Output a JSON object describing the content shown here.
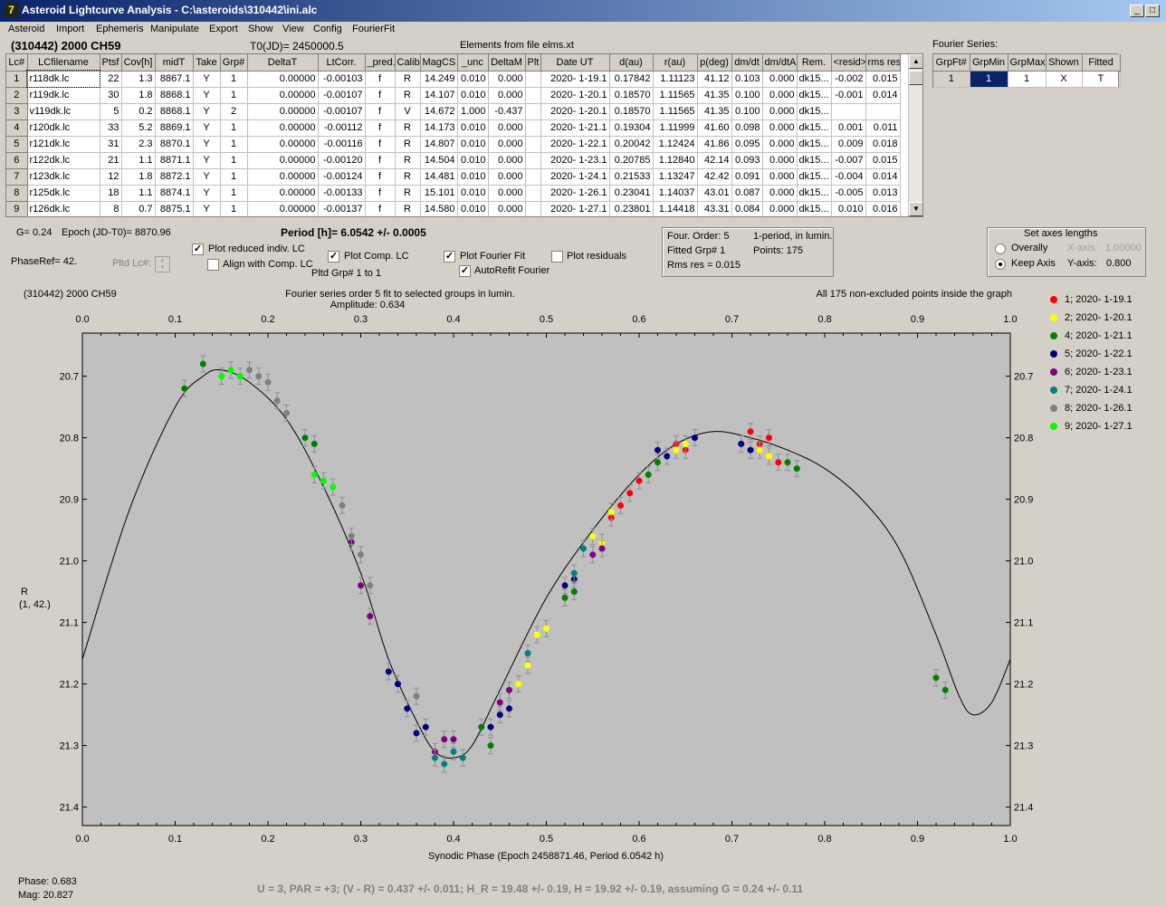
{
  "window": {
    "title": "Asteroid Lightcurve Analysis - C:\\asteroids\\310442\\ini.alc",
    "icon": "app-logo-icon"
  },
  "menu": [
    "Asteroid",
    "Import",
    "Ephemeris",
    "Manipulate",
    "Export",
    "Show",
    "View",
    "Config",
    "FourierFit"
  ],
  "header": {
    "asteroid": "(310442) 2000 CH59",
    "t0": "T0(JD)= 2450000.5",
    "elements": "Elements from file elms.xt",
    "fourier_label": "Fourier Series:"
  },
  "lc_columns": [
    "Lc#",
    "LCfilename",
    "Ptsf",
    "Cov[h]",
    "midT",
    "Take",
    "Grp#",
    "DeltaT",
    "LtCorr.",
    "_pred.",
    "Calib.",
    "MagCS",
    "_unc",
    "DeltaM",
    "Plt",
    "Date UT",
    "d(au)",
    "r(au)",
    "p(deg)",
    "dm/dt",
    "dm/dtA",
    "Rem.",
    "<resid>",
    "rms res"
  ],
  "lc_rows": [
    [
      "1",
      "r118dk.lc",
      "22",
      "1.3",
      "8867.1",
      "Y",
      "1",
      "0.00000",
      "-0.00103",
      "f",
      "R",
      "14.249",
      "0.010",
      "0.000",
      "",
      "2020- 1-19.1",
      "0.17842",
      "1.11123",
      "41.12",
      "0.103",
      "0.000",
      "dk15...",
      "-0.002",
      "0.015"
    ],
    [
      "2",
      "r119dk.lc",
      "30",
      "1.8",
      "8868.1",
      "Y",
      "1",
      "0.00000",
      "-0.00107",
      "f",
      "R",
      "14.107",
      "0.010",
      "0.000",
      "",
      "2020- 1-20.1",
      "0.18570",
      "1.11565",
      "41.35",
      "0.100",
      "0.000",
      "dk15...",
      "-0.001",
      "0.014"
    ],
    [
      "3",
      "v119dk.lc",
      "5",
      "0.2",
      "8868.1",
      "Y",
      "2",
      "0.00000",
      "-0.00107",
      "f",
      "V",
      "14.672",
      "1.000",
      "-0.437",
      "",
      "2020- 1-20.1",
      "0.18570",
      "1.11565",
      "41.35",
      "0.100",
      "0.000",
      "dk15...",
      "",
      ""
    ],
    [
      "4",
      "r120dk.lc",
      "33",
      "5.2",
      "8869.1",
      "Y",
      "1",
      "0.00000",
      "-0.00112",
      "f",
      "R",
      "14.173",
      "0.010",
      "0.000",
      "",
      "2020- 1-21.1",
      "0.19304",
      "1.11999",
      "41.60",
      "0.098",
      "0.000",
      "dk15...",
      "0.001",
      "0.011"
    ],
    [
      "5",
      "r121dk.lc",
      "31",
      "2.3",
      "8870.1",
      "Y",
      "1",
      "0.00000",
      "-0.00116",
      "f",
      "R",
      "14.807",
      "0.010",
      "0.000",
      "",
      "2020- 1-22.1",
      "0.20042",
      "1.12424",
      "41.86",
      "0.095",
      "0.000",
      "dk15...",
      "0.009",
      "0.018"
    ],
    [
      "6",
      "r122dk.lc",
      "21",
      "1.1",
      "8871.1",
      "Y",
      "1",
      "0.00000",
      "-0.00120",
      "f",
      "R",
      "14.504",
      "0.010",
      "0.000",
      "",
      "2020- 1-23.1",
      "0.20785",
      "1.12840",
      "42.14",
      "0.093",
      "0.000",
      "dk15...",
      "-0.007",
      "0.015"
    ],
    [
      "7",
      "r123dk.lc",
      "12",
      "1.8",
      "8872.1",
      "Y",
      "1",
      "0.00000",
      "-0.00124",
      "f",
      "R",
      "14.481",
      "0.010",
      "0.000",
      "",
      "2020- 1-24.1",
      "0.21533",
      "1.13247",
      "42.42",
      "0.091",
      "0.000",
      "dk15...",
      "-0.004",
      "0.014"
    ],
    [
      "8",
      "r125dk.lc",
      "18",
      "1.1",
      "8874.1",
      "Y",
      "1",
      "0.00000",
      "-0.00133",
      "f",
      "R",
      "15.101",
      "0.010",
      "0.000",
      "",
      "2020- 1-26.1",
      "0.23041",
      "1.14037",
      "43.01",
      "0.087",
      "0.000",
      "dk15...",
      "-0.005",
      "0.013"
    ],
    [
      "9",
      "r126dk.lc",
      "8",
      "0.7",
      "8875.1",
      "Y",
      "1",
      "0.00000",
      "-0.00137",
      "f",
      "R",
      "14.580",
      "0.010",
      "0.000",
      "",
      "2020- 1-27.1",
      "0.23801",
      "1.14418",
      "43.31",
      "0.084",
      "0.000",
      "dk15...",
      "0.010",
      "0.016"
    ]
  ],
  "fourier_columns": [
    "GrpFt#",
    "GrpMin",
    "GrpMax",
    "Shown",
    "Fitted"
  ],
  "fourier_row": [
    "1",
    "1",
    "1",
    "X",
    "T"
  ],
  "controls": {
    "g": "G= 0.24",
    "epoch": "Epoch (JD-T0)= 8870.96",
    "period": "Period [h]= 6.0542 +/- 0.0005",
    "phaseref": "PhaseRef= 42.",
    "pltd_lc": "Pltd Lc#:",
    "plot_reduced": "Plot reduced indiv. LC",
    "align_comp": "Align with Comp. LC",
    "plot_comp": "Plot Comp. LC",
    "pltd_grp": "Pltd Grp#  1   to   1",
    "plot_fourier": "Plot Fourier Fit",
    "autorefit": "AutoRefit Fourier",
    "plot_resid": "Plot residuals"
  },
  "fourier_info": {
    "order": "Four. Order:  5",
    "fitted": "Fitted Grp# 1",
    "rms": "Rms res     = 0.015",
    "period_mode": "1-period, in lumin.",
    "points": "Points: 175"
  },
  "axes_box": {
    "title": "Set axes lengths",
    "overally": "Overally",
    "keep": "Keep Axis",
    "xaxis_label": "X-axis:",
    "xaxis_value": "1.00000",
    "yaxis_label": "Y-axis:",
    "yaxis_value": "0.800"
  },
  "plot": {
    "name": "(310442) 2000 CH59",
    "subtitle1": "Fourier series order 5 fit to selected groups in lumin.",
    "subtitle2": "Amplitude: 0.634",
    "note": "All 175 non-excluded points inside the graph",
    "ylabel1": "R",
    "ylabel2": "(1, 42.)",
    "xlabel": "Synodic Phase (Epoch 2458871.46, Period 6.0542 h)",
    "xticks": [
      "0.0",
      "0.1",
      "0.2",
      "0.3",
      "0.4",
      "0.5",
      "0.6",
      "0.7",
      "0.8",
      "0.9",
      "1.0"
    ],
    "yticks": [
      "20.7",
      "20.8",
      "20.9",
      "21.0",
      "21.1",
      "21.2",
      "21.3",
      "21.4"
    ]
  },
  "legend": [
    {
      "label": "1; 2020- 1-19.1",
      "color": "#ff0000"
    },
    {
      "label": "2; 2020- 1-20.1",
      "color": "#ffff00"
    },
    {
      "label": "4; 2020- 1-21.1",
      "color": "#008000"
    },
    {
      "label": "5; 2020- 1-22.1",
      "color": "#000080"
    },
    {
      "label": "6; 2020- 1-23.1",
      "color": "#800080"
    },
    {
      "label": "7; 2020- 1-24.1",
      "color": "#008080"
    },
    {
      "label": "8; 2020- 1-26.1",
      "color": "#808080"
    },
    {
      "label": "9; 2020- 1-27.1",
      "color": "#00ff00"
    }
  ],
  "status": {
    "phase": "Phase:  0.683",
    "mag": "Mag:    20.827",
    "result": "U = 3, PAR = +3; (V - R) = 0.437 +/- 0.011; H_R = 19.48 +/- 0.19, H = 19.92 +/- 0.19, assuming G = 0.24 +/- 0.11"
  },
  "chart_data": {
    "type": "scatter",
    "title": "Fourier series order 5 fit to selected groups in lumin.",
    "xlabel": "Synodic Phase (Epoch 2458871.46, Period 6.0542 h)",
    "ylabel": "R",
    "xlim": [
      0,
      1
    ],
    "ylim": [
      20.63,
      21.43
    ],
    "y_inverted": true,
    "fit_curve": {
      "x": [
        0.0,
        0.05,
        0.1,
        0.13,
        0.15,
        0.18,
        0.22,
        0.26,
        0.3,
        0.33,
        0.36,
        0.38,
        0.4,
        0.42,
        0.45,
        0.5,
        0.55,
        0.6,
        0.64,
        0.68,
        0.72,
        0.76,
        0.8,
        0.84,
        0.88,
        0.92,
        0.945,
        0.96,
        0.98,
        1.0
      ],
      "y": [
        21.16,
        20.92,
        20.75,
        20.7,
        20.69,
        20.71,
        20.77,
        20.88,
        21.02,
        21.16,
        21.26,
        21.31,
        21.32,
        21.3,
        21.21,
        21.06,
        20.95,
        20.86,
        20.81,
        20.79,
        20.8,
        20.82,
        20.85,
        20.9,
        20.98,
        21.12,
        21.22,
        21.25,
        21.23,
        21.16
      ]
    },
    "series": [
      {
        "name": "1; 2020- 1-19.1",
        "color": "#ff0000",
        "points": [
          [
            0.57,
            20.93
          ],
          [
            0.58,
            20.91
          ],
          [
            0.59,
            20.89
          ],
          [
            0.6,
            20.87
          ],
          [
            0.64,
            20.81
          ],
          [
            0.65,
            20.82
          ],
          [
            0.72,
            20.79
          ],
          [
            0.73,
            20.81
          ],
          [
            0.74,
            20.8
          ],
          [
            0.75,
            20.84
          ]
        ]
      },
      {
        "name": "2; 2020- 1-20.1",
        "color": "#ffff00",
        "points": [
          [
            0.47,
            21.2
          ],
          [
            0.48,
            21.17
          ],
          [
            0.49,
            21.12
          ],
          [
            0.5,
            21.11
          ],
          [
            0.55,
            20.96
          ],
          [
            0.56,
            20.97
          ],
          [
            0.57,
            20.92
          ],
          [
            0.64,
            20.82
          ],
          [
            0.65,
            20.81
          ],
          [
            0.73,
            20.82
          ],
          [
            0.74,
            20.83
          ]
        ]
      },
      {
        "name": "4; 2020- 1-21.1",
        "color": "#008000",
        "points": [
          [
            0.11,
            20.72
          ],
          [
            0.13,
            20.68
          ],
          [
            0.24,
            20.8
          ],
          [
            0.25,
            20.81
          ],
          [
            0.43,
            21.27
          ],
          [
            0.44,
            21.3
          ],
          [
            0.52,
            21.06
          ],
          [
            0.53,
            21.05
          ],
          [
            0.61,
            20.86
          ],
          [
            0.62,
            20.84
          ],
          [
            0.72,
            20.82
          ],
          [
            0.76,
            20.84
          ],
          [
            0.77,
            20.85
          ],
          [
            0.92,
            21.19
          ],
          [
            0.93,
            21.21
          ]
        ]
      },
      {
        "name": "5; 2020- 1-22.1",
        "color": "#000080",
        "points": [
          [
            0.33,
            21.18
          ],
          [
            0.34,
            21.2
          ],
          [
            0.35,
            21.24
          ],
          [
            0.36,
            21.28
          ],
          [
            0.37,
            21.27
          ],
          [
            0.44,
            21.27
          ],
          [
            0.45,
            21.25
          ],
          [
            0.46,
            21.24
          ],
          [
            0.52,
            21.04
          ],
          [
            0.53,
            21.03
          ],
          [
            0.62,
            20.82
          ],
          [
            0.63,
            20.83
          ],
          [
            0.66,
            20.8
          ],
          [
            0.71,
            20.81
          ],
          [
            0.72,
            20.82
          ]
        ]
      },
      {
        "name": "6; 2020- 1-23.1",
        "color": "#800080",
        "points": [
          [
            0.29,
            20.97
          ],
          [
            0.3,
            21.04
          ],
          [
            0.31,
            21.09
          ],
          [
            0.38,
            21.31
          ],
          [
            0.39,
            21.29
          ],
          [
            0.4,
            21.29
          ],
          [
            0.45,
            21.23
          ],
          [
            0.46,
            21.21
          ],
          [
            0.55,
            20.99
          ],
          [
            0.56,
            20.98
          ]
        ]
      },
      {
        "name": "7; 2020- 1-24.1",
        "color": "#008080",
        "points": [
          [
            0.38,
            21.32
          ],
          [
            0.39,
            21.33
          ],
          [
            0.4,
            21.31
          ],
          [
            0.41,
            21.32
          ],
          [
            0.48,
            21.15
          ],
          [
            0.53,
            21.02
          ],
          [
            0.54,
            20.98
          ]
        ]
      },
      {
        "name": "8; 2020- 1-26.1",
        "color": "#808080",
        "points": [
          [
            0.18,
            20.69
          ],
          [
            0.19,
            20.7
          ],
          [
            0.2,
            20.71
          ],
          [
            0.21,
            20.74
          ],
          [
            0.22,
            20.76
          ],
          [
            0.28,
            20.91
          ],
          [
            0.29,
            20.96
          ],
          [
            0.3,
            20.99
          ],
          [
            0.31,
            21.04
          ],
          [
            0.36,
            21.22
          ]
        ]
      },
      {
        "name": "9; 2020- 1-27.1",
        "color": "#00ff00",
        "points": [
          [
            0.15,
            20.7
          ],
          [
            0.16,
            20.69
          ],
          [
            0.17,
            20.7
          ],
          [
            0.25,
            20.86
          ],
          [
            0.26,
            20.87
          ],
          [
            0.27,
            20.88
          ]
        ]
      }
    ]
  }
}
